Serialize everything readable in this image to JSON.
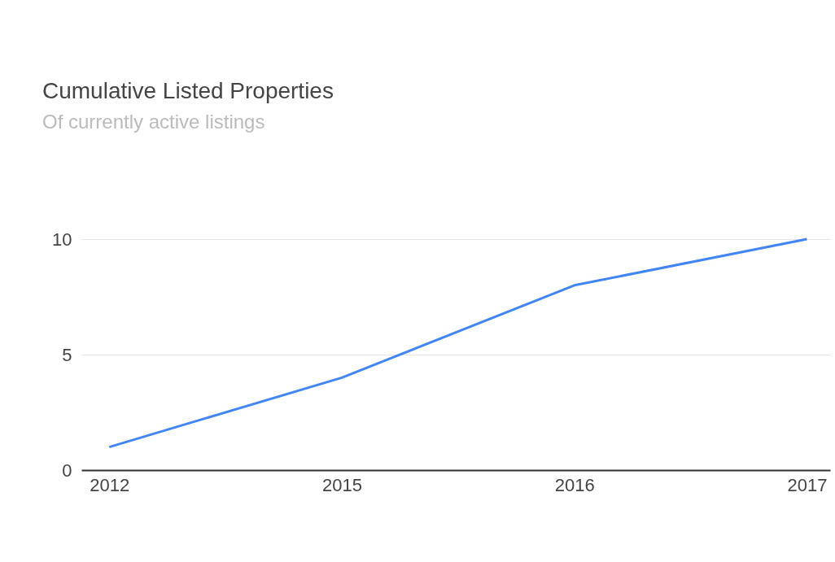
{
  "chart_data": {
    "type": "line",
    "title": "Cumulative Listed Properties",
    "subtitle": "Of currently active listings",
    "categories": [
      "2012",
      "2015",
      "2016",
      "2017"
    ],
    "series": [
      {
        "color": "#4285f4",
        "values": [
          1,
          4,
          8,
          10
        ]
      }
    ],
    "ylim": [
      0,
      10
    ],
    "yticks": [
      0,
      5,
      10
    ],
    "grid": "y",
    "legend": false,
    "marker": "none",
    "line_style": "solid"
  }
}
